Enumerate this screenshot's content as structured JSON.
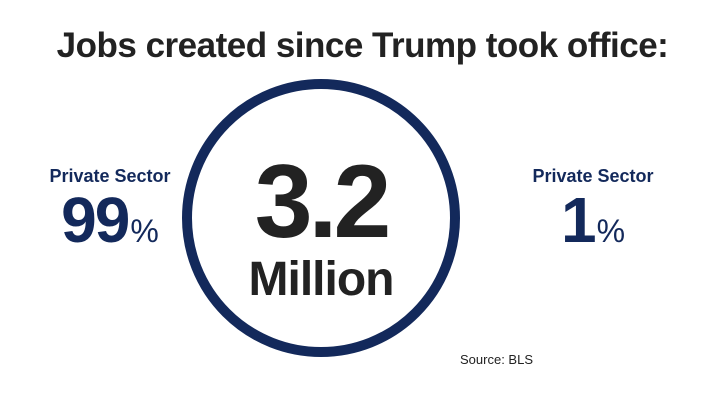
{
  "title": "Jobs created since Trump took office:",
  "center": {
    "value": "3.2",
    "unit": "Million"
  },
  "left_stat": {
    "label": "Private Sector",
    "value": "99",
    "suffix": "%"
  },
  "right_stat": {
    "label": "Private Sector",
    "value": "1",
    "suffix": "%"
  },
  "source": "Source: BLS",
  "colors": {
    "accent_navy": "#13295b",
    "text_dark": "#222222",
    "background": "#ffffff"
  }
}
